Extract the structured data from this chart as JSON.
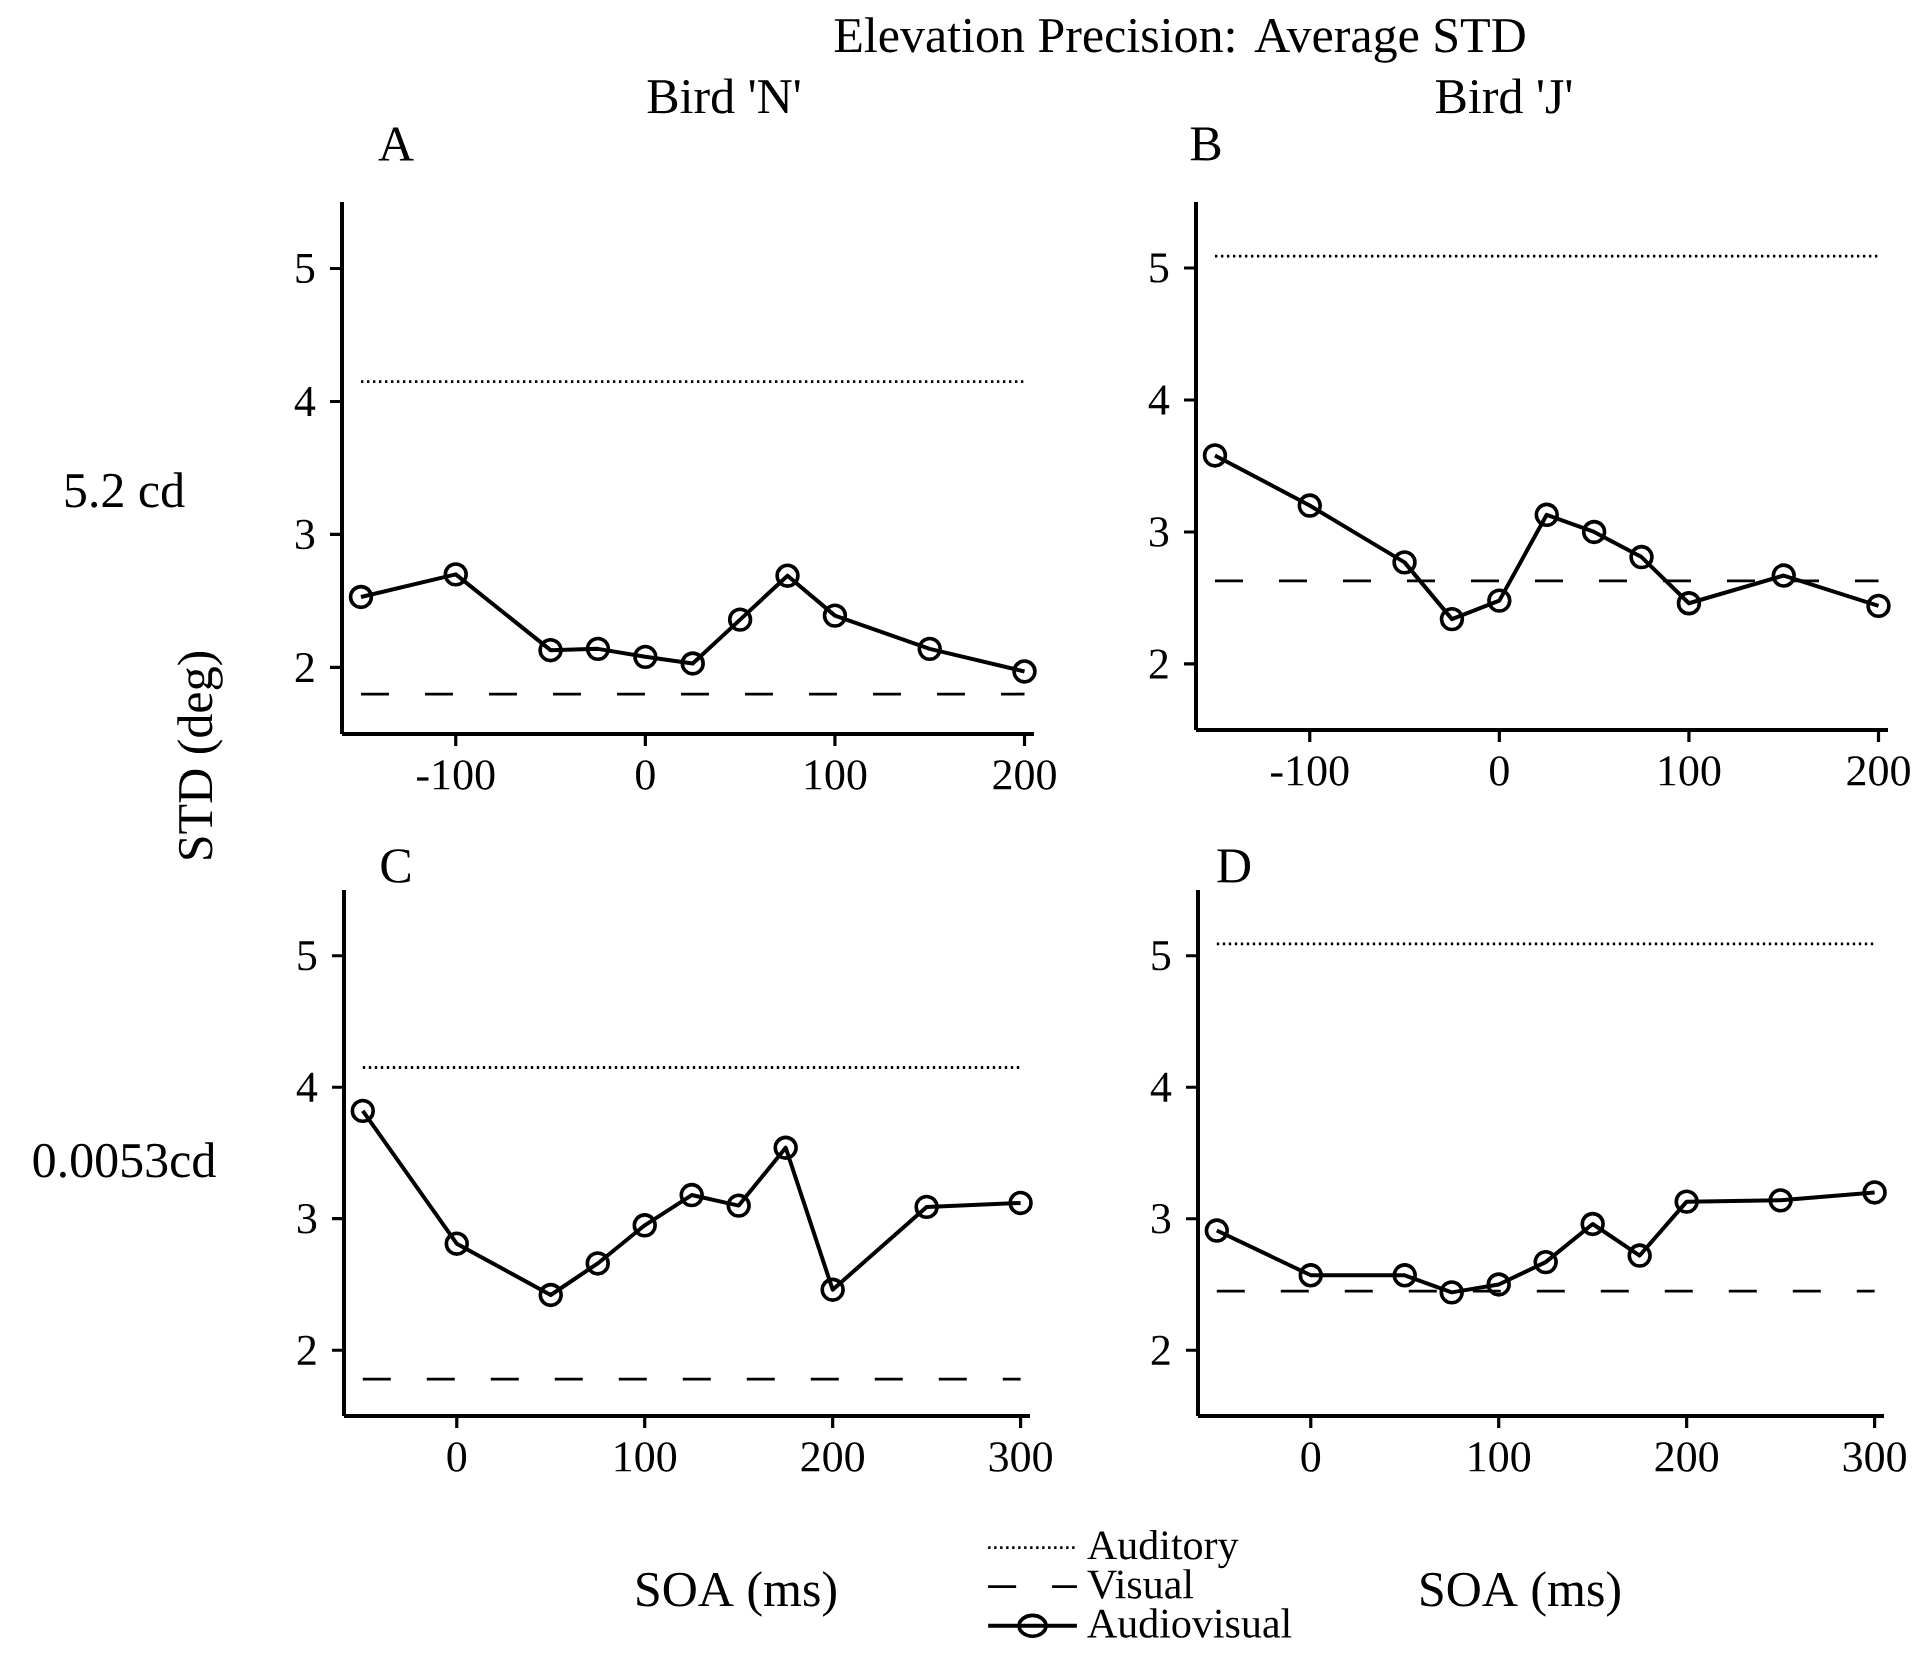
{
  "chart_data": [
    {
      "type": "line",
      "title": "Bird 'N'",
      "ylabel": "STD (deg)",
      "annotations": [
        "Elevation Precision:  Average STD",
        "A",
        "5.2 cd"
      ],
      "xlim": [
        -160,
        205
      ],
      "xticks": [
        -100,
        0,
        100,
        200
      ],
      "ylim": [
        1.5,
        5.5
      ],
      "yticks": [
        2,
        3,
        4,
        5
      ],
      "series": [
        {
          "color": "#000000",
          "line_style": "dotted",
          "marker": "none",
          "x": [
            -150,
            200
          ],
          "values": [
            4.15,
            4.15
          ]
        },
        {
          "color": "#000000",
          "line_style": "dashed",
          "marker": "none",
          "x": [
            -150,
            200
          ],
          "values": [
            1.8,
            1.8
          ]
        },
        {
          "color": "#000000",
          "line_style": "solid",
          "marker": "circle",
          "x": [
            -150,
            -100,
            -50,
            -25,
            0,
            25,
            50,
            75,
            100,
            150,
            200
          ],
          "values": [
            2.53,
            2.7,
            2.13,
            2.14,
            2.08,
            2.03,
            2.36,
            2.69,
            2.39,
            2.14,
            1.97
          ]
        }
      ]
    },
    {
      "type": "line",
      "title": "Bird 'J'",
      "annotations": [
        "B"
      ],
      "xlim": [
        -160,
        205
      ],
      "xticks": [
        -100,
        0,
        100,
        200
      ],
      "ylim": [
        1.5,
        5.5
      ],
      "yticks": [
        2,
        3,
        4,
        5
      ],
      "series": [
        {
          "color": "#000000",
          "line_style": "dotted",
          "marker": "none",
          "x": [
            -150,
            200
          ],
          "values": [
            5.09,
            5.09
          ]
        },
        {
          "color": "#000000",
          "line_style": "dashed",
          "marker": "none",
          "x": [
            -150,
            200
          ],
          "values": [
            2.63,
            2.63
          ]
        },
        {
          "color": "#000000",
          "line_style": "solid",
          "marker": "circle",
          "x": [
            -150,
            -100,
            -50,
            -25,
            0,
            25,
            50,
            75,
            100,
            150,
            200
          ],
          "values": [
            3.58,
            3.2,
            2.77,
            2.34,
            2.48,
            3.13,
            3.0,
            2.81,
            2.46,
            2.67,
            2.44
          ]
        }
      ]
    },
    {
      "type": "line",
      "xlabel": "SOA (ms)",
      "annotations": [
        "C",
        "0.0053cd"
      ],
      "xlim": [
        -60,
        305
      ],
      "xticks": [
        0,
        100,
        200,
        300
      ],
      "ylim": [
        1.5,
        5.5
      ],
      "yticks": [
        2,
        3,
        4,
        5
      ],
      "series": [
        {
          "color": "#000000",
          "line_style": "dotted",
          "marker": "none",
          "x": [
            -50,
            300
          ],
          "values": [
            4.15,
            4.15
          ]
        },
        {
          "color": "#000000",
          "line_style": "dashed",
          "marker": "none",
          "x": [
            -50,
            300
          ],
          "values": [
            1.78,
            1.78
          ]
        },
        {
          "color": "#000000",
          "line_style": "solid",
          "marker": "circle",
          "x": [
            -50,
            0,
            50,
            75,
            100,
            125,
            150,
            175,
            200,
            250,
            300
          ],
          "values": [
            3.82,
            2.81,
            2.42,
            2.66,
            2.95,
            3.18,
            3.1,
            3.54,
            2.46,
            3.09,
            3.12
          ]
        }
      ]
    },
    {
      "type": "line",
      "xlabel": "SOA (ms)",
      "annotations": [
        "D"
      ],
      "legend": "bottom left",
      "xlim": [
        -60,
        305
      ],
      "xticks": [
        0,
        100,
        200,
        300
      ],
      "ylim": [
        1.5,
        5.5
      ],
      "yticks": [
        2,
        3,
        4,
        5
      ],
      "series": [
        {
          "name": "Auditory",
          "color": "#000000",
          "line_style": "dotted",
          "marker": "none",
          "x": [
            -50,
            300
          ],
          "values": [
            5.09,
            5.09
          ]
        },
        {
          "name": "Visual",
          "color": "#000000",
          "line_style": "dashed",
          "marker": "none",
          "x": [
            -50,
            300
          ],
          "values": [
            2.45,
            2.45
          ]
        },
        {
          "name": "Audiovisual",
          "color": "#000000",
          "line_style": "solid",
          "marker": "circle",
          "x": [
            -50,
            0,
            50,
            75,
            100,
            125,
            150,
            175,
            200,
            250,
            300
          ],
          "values": [
            2.91,
            2.57,
            2.57,
            2.44,
            2.5,
            2.67,
            2.96,
            2.72,
            3.13,
            3.14,
            3.2
          ]
        }
      ]
    }
  ]
}
